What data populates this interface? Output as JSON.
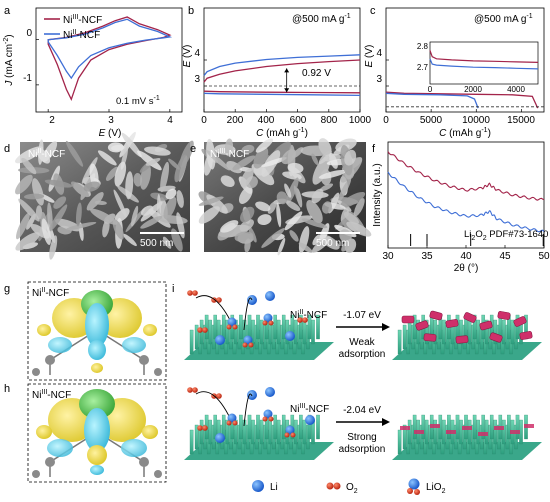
{
  "figure": {
    "panel_letters": [
      "a",
      "b",
      "c",
      "d",
      "e",
      "f",
      "g",
      "h",
      "i"
    ],
    "colors": {
      "ni3": "#a3244a",
      "ni2": "#3f6fd6",
      "dashed": "#333333",
      "cv_fill": "#ffffff"
    },
    "panel_a": {
      "legend": [
        "Ni",
        "Ni"
      ],
      "legend_sup": [
        "III",
        "II"
      ],
      "legend_suffix": [
        "-NCF",
        "-NCF"
      ],
      "ylabel_pre": "J",
      "ylabel_unit": " (mA cm",
      "ylabel_sup": "-2",
      "ylabel_close": ")",
      "xlabel_pre": "E",
      "xlabel_unit": " (V)",
      "annotation": "0.1 mV s",
      "annotation_sup": "-1"
    },
    "panel_b": {
      "annotation": "@500 mA g",
      "annotation_sup": "-1",
      "gap_label": "0.92 V",
      "ylabel_pre": "E",
      "ylabel_unit": " (V)",
      "xlabel_pre": "C",
      "xlabel_unit": " (mAh g",
      "xlabel_sup": "-1",
      "xlabel_close": ")"
    },
    "panel_c": {
      "annotation": "@500 mA g",
      "annotation_sup": "-1",
      "ylabel_pre": "E",
      "ylabel_unit": " (V)",
      "xlabel_pre": "C",
      "xlabel_unit": " (mAh g",
      "xlabel_sup": "-1",
      "xlabel_close": ")"
    },
    "panel_d": {
      "title": "Ni",
      "title_sup": "II",
      "title_suffix": "-NCF",
      "scalebar": "500 nm"
    },
    "panel_e": {
      "title": "Ni",
      "title_sup": "III",
      "title_suffix": "-NCF",
      "scalebar": "500 nm"
    },
    "panel_f": {
      "ylabel": "Intensity (a.u.)",
      "xlabel": "2θ (°)",
      "ref_label": "Li",
      "ref_sub1": "2",
      "ref_mid": "O",
      "ref_sub2": "2",
      "ref_suffix": " PDF#73-1640"
    },
    "panel_g": {
      "title": "Ni",
      "title_sup": "II",
      "title_suffix": "-NCF"
    },
    "panel_h": {
      "title": "Ni",
      "title_sup": "III",
      "title_suffix": "-NCF"
    },
    "panel_i": {
      "top_label": "Ni",
      "top_label_sup": "II",
      "top_label_suffix": "-NCF",
      "top_energy": "-1.07 eV",
      "top_desc_1": "Weak",
      "top_desc_2": "adsorption",
      "bottom_label": "Ni",
      "bottom_label_sup": "III",
      "bottom_label_suffix": "-NCF",
      "bottom_energy": "-2.04 eV",
      "bottom_desc_1": "Strong",
      "bottom_desc_2": "adsorption"
    },
    "legend_bottom": [
      {
        "label": "Li",
        "sub": "",
        "suffix": ""
      },
      {
        "label": "O",
        "sub": "2",
        "suffix": ""
      },
      {
        "label": "LiO",
        "sub": "2",
        "suffix": ""
      }
    ]
  },
  "chart_data": [
    {
      "panel": "a",
      "type": "line",
      "xlabel": "E (V)",
      "ylabel": "J (mA cm-2)",
      "xlim": [
        1.8,
        4.2
      ],
      "ylim": [
        -1.6,
        0.7
      ],
      "xticks": [
        2,
        3,
        4
      ],
      "yticks": [
        -1,
        0
      ],
      "series": [
        {
          "name": "NiIII-NCF",
          "x": [
            2.0,
            2.15,
            2.3,
            2.38,
            2.5,
            2.7,
            3.0,
            3.3,
            3.6,
            3.9,
            4.0,
            3.8,
            3.5,
            3.3,
            3.1,
            2.9,
            2.6,
            2.3,
            2.0
          ],
          "y": [
            -0.1,
            -0.55,
            -1.1,
            -1.32,
            -0.85,
            -0.45,
            -0.22,
            -0.1,
            -0.02,
            0.05,
            0.1,
            0.22,
            0.35,
            0.5,
            0.42,
            0.3,
            0.15,
            0.05,
            0.0
          ]
        },
        {
          "name": "NiII-NCF",
          "x": [
            2.0,
            2.15,
            2.3,
            2.38,
            2.5,
            2.7,
            3.0,
            3.3,
            3.6,
            3.9,
            4.0,
            3.8,
            3.5,
            3.3,
            3.1,
            2.9,
            2.6,
            2.3,
            2.0
          ],
          "y": [
            -0.05,
            -0.35,
            -0.7,
            -0.85,
            -0.6,
            -0.35,
            -0.18,
            -0.08,
            -0.01,
            0.04,
            0.06,
            0.18,
            0.3,
            0.45,
            0.38,
            0.26,
            0.12,
            0.04,
            0.0
          ]
        }
      ]
    },
    {
      "panel": "b",
      "type": "line",
      "xlabel": "C (mAh g-1)",
      "ylabel": "E (V)",
      "xlim": [
        0,
        1000
      ],
      "ylim": [
        2,
        6
      ],
      "xticks": [
        0,
        200,
        400,
        600,
        800,
        1000
      ],
      "yticks": [
        3,
        4
      ],
      "series": [
        {
          "name": "NiII-NCF charge",
          "x": [
            0,
            20,
            100,
            200,
            400,
            600,
            800,
            1000
          ],
          "y": [
            3.4,
            3.55,
            3.75,
            3.88,
            4.02,
            4.1,
            4.15,
            4.2
          ]
        },
        {
          "name": "NiIII-NCF charge",
          "x": [
            0,
            20,
            100,
            200,
            400,
            600,
            800,
            1000
          ],
          "y": [
            3.15,
            3.3,
            3.45,
            3.58,
            3.75,
            3.86,
            3.94,
            4.0
          ]
        },
        {
          "name": "NiII-NCF discharge",
          "x": [
            0,
            100,
            400,
            700,
            1000
          ],
          "y": [
            2.72,
            2.7,
            2.68,
            2.66,
            2.64
          ]
        },
        {
          "name": "NiIII-NCF discharge",
          "x": [
            0,
            100,
            400,
            700,
            1000
          ],
          "y": [
            2.8,
            2.78,
            2.76,
            2.75,
            2.74
          ]
        }
      ]
    },
    {
      "panel": "c",
      "type": "line",
      "xlabel": "C (mAh g-1)",
      "ylabel": "E (V)",
      "xlim": [
        0,
        17500
      ],
      "ylim": [
        2,
        6
      ],
      "xticks": [
        0,
        5000,
        10000,
        15000
      ],
      "yticks": [
        3,
        4
      ],
      "series": [
        {
          "name": "NiIII-NCF",
          "x": [
            0,
            2000,
            6000,
            10000,
            14000,
            16200,
            16800
          ],
          "y": [
            2.76,
            2.72,
            2.7,
            2.68,
            2.66,
            2.6,
            2.15
          ]
        },
        {
          "name": "NiII-NCF",
          "x": [
            0,
            2000,
            6000,
            9000,
            9800,
            10200
          ],
          "y": [
            2.72,
            2.68,
            2.66,
            2.62,
            2.5,
            2.15
          ]
        }
      ],
      "inset": {
        "xlim": [
          0,
          5000
        ],
        "ylim": [
          2.6,
          2.8
        ],
        "xticks": [
          0,
          2000,
          4000
        ],
        "yticks": [
          2.7,
          2.8
        ],
        "series": [
          {
            "name": "NiIII-NCF",
            "x": [
              0,
              100,
              300,
              1000,
              2000,
              3000,
              4000,
              5000
            ],
            "y": [
              2.76,
              2.73,
              2.72,
              2.715,
              2.71,
              2.708,
              2.705,
              2.703
            ]
          },
          {
            "name": "NiII-NCF",
            "x": [
              0,
              100,
              300,
              1000,
              2000,
              3000,
              4000,
              5000
            ],
            "y": [
              2.72,
              2.695,
              2.69,
              2.685,
              2.68,
              2.678,
              2.675,
              2.672
            ]
          }
        ]
      }
    },
    {
      "panel": "f",
      "type": "line",
      "xlabel": "2θ (°)",
      "ylabel": "Intensity (a.u.)",
      "xlim": [
        30,
        50
      ],
      "xticks": [
        30,
        35,
        40,
        45,
        50
      ],
      "series": [
        {
          "name": "NiIII-NCF",
          "x": [
            30,
            32,
            34,
            36,
            38,
            40,
            42,
            43,
            44,
            46,
            48,
            50
          ],
          "y": [
            1.0,
            0.88,
            0.78,
            0.7,
            0.64,
            0.6,
            0.62,
            0.66,
            0.6,
            0.55,
            0.52,
            0.5
          ]
        },
        {
          "name": "NiII-NCF",
          "x": [
            30,
            32,
            34,
            36,
            38,
            40,
            42,
            43,
            44,
            46,
            48,
            50
          ],
          "y": [
            0.78,
            0.64,
            0.52,
            0.43,
            0.37,
            0.33,
            0.34,
            0.38,
            0.3,
            0.24,
            0.2,
            0.17
          ]
        }
      ],
      "reference_peaks": [
        32.9,
        35.0,
        40.6,
        49.9
      ]
    }
  ]
}
